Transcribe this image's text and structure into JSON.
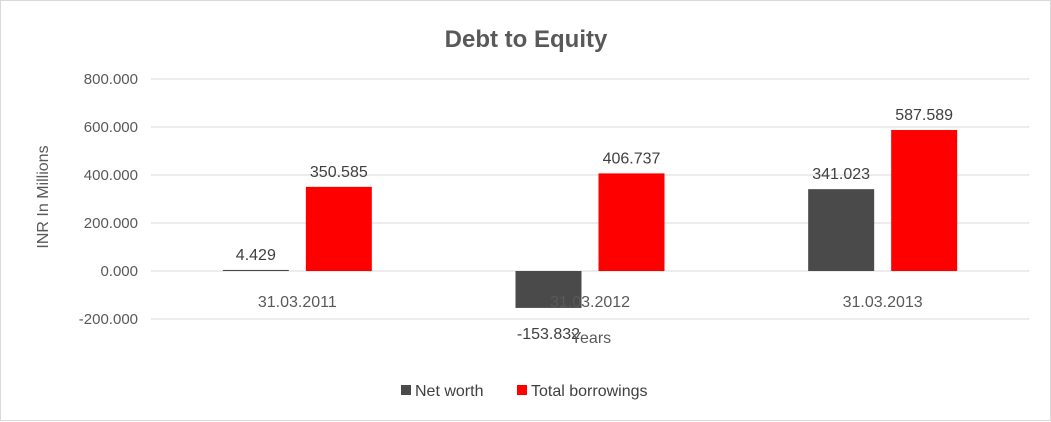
{
  "chart_data": {
    "type": "bar",
    "title": "Debt to Equity",
    "xlabel": "Years",
    "ylabel": "INR In Millions",
    "categories": [
      "31.03.2011",
      "31.03.2012",
      "31.03.2013"
    ],
    "series": [
      {
        "name": "Net worth",
        "color": "#4a4a4a",
        "values": [
          4.429,
          -153.832,
          341.023
        ],
        "labels": [
          "4.429",
          "-153.832",
          "341.023"
        ]
      },
      {
        "name": "Total borrowings",
        "color": "#ff0000",
        "values": [
          350.585,
          406.737,
          587.589
        ],
        "labels": [
          "350.585",
          "406.737",
          "587.589"
        ]
      }
    ],
    "yticks": [
      -200,
      0,
      200,
      400,
      600,
      800
    ],
    "ytick_labels": [
      "-200.000",
      "0.000",
      "200.000",
      "400.000",
      "600.000",
      "800.000"
    ],
    "ylim": [
      -200,
      800
    ],
    "grid": true,
    "legend_position": "bottom"
  }
}
